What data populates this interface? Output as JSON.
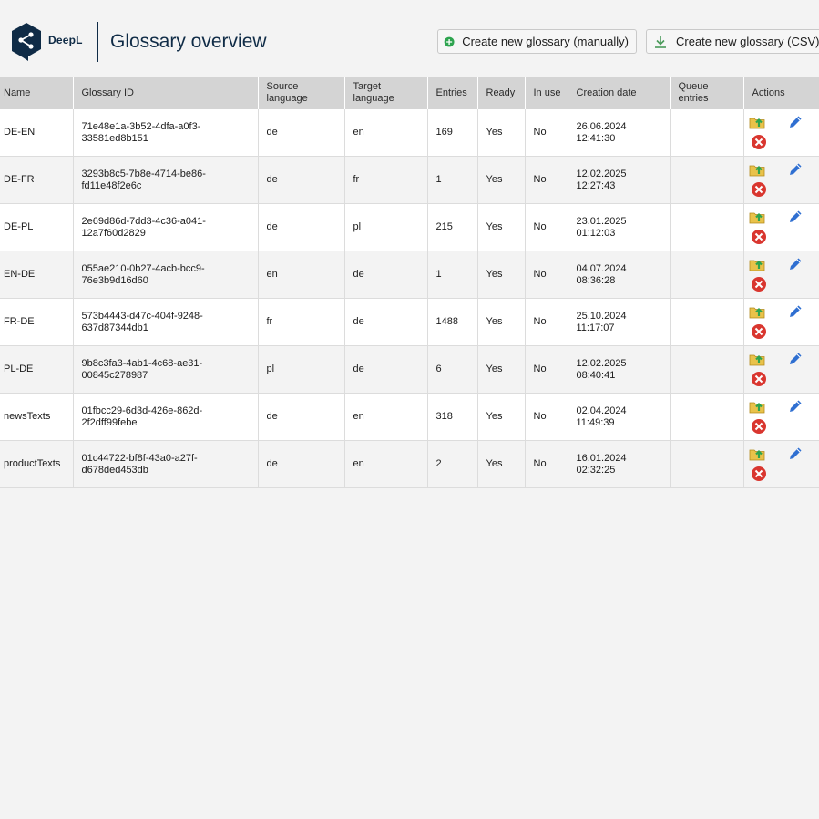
{
  "brand": {
    "logo_text": "DeepL"
  },
  "page": {
    "title": "Glossary overview"
  },
  "toolbar": {
    "create_manual_label": "Create new glossary (manually)",
    "create_csv_label": "Create new glossary (CSV)"
  },
  "table": {
    "headers": {
      "name": "Name",
      "glossary_id": "Glossary ID",
      "source_language": "Source language",
      "target_language": "Target language",
      "entries": "Entries",
      "ready": "Ready",
      "in_use": "In use",
      "creation_date": "Creation date",
      "queue_entries": "Queue entries",
      "actions": "Actions"
    },
    "rows": [
      {
        "name": "DE-EN",
        "glossary_id": "71e48e1a-3b52-4dfa-a0f3-33581ed8b151",
        "source": "de",
        "target": "en",
        "entries": "169",
        "ready": "Yes",
        "in_use": "No",
        "date": "26.06.2024",
        "time": "12:41:30",
        "queue": ""
      },
      {
        "name": "DE-FR",
        "glossary_id": "3293b8c5-7b8e-4714-be86-fd11e48f2e6c",
        "source": "de",
        "target": "fr",
        "entries": "1",
        "ready": "Yes",
        "in_use": "No",
        "date": "12.02.2025",
        "time": "12:27:43",
        "queue": ""
      },
      {
        "name": "DE-PL",
        "glossary_id": "2e69d86d-7dd3-4c36-a041-12a7f60d2829",
        "source": "de",
        "target": "pl",
        "entries": "215",
        "ready": "Yes",
        "in_use": "No",
        "date": "23.01.2025",
        "time": "01:12:03",
        "queue": ""
      },
      {
        "name": "EN-DE",
        "glossary_id": "055ae210-0b27-4acb-bcc9-76e3b9d16d60",
        "source": "en",
        "target": "de",
        "entries": "1",
        "ready": "Yes",
        "in_use": "No",
        "date": "04.07.2024",
        "time": "08:36:28",
        "queue": ""
      },
      {
        "name": "FR-DE",
        "glossary_id": "573b4443-d47c-404f-9248-637d87344db1",
        "source": "fr",
        "target": "de",
        "entries": "1488",
        "ready": "Yes",
        "in_use": "No",
        "date": "25.10.2024",
        "time": "11:17:07",
        "queue": ""
      },
      {
        "name": "PL-DE",
        "glossary_id": "9b8c3fa3-4ab1-4c68-ae31-00845c278987",
        "source": "pl",
        "target": "de",
        "entries": "6",
        "ready": "Yes",
        "in_use": "No",
        "date": "12.02.2025",
        "time": "08:40:41",
        "queue": ""
      },
      {
        "name": "newsTexts",
        "glossary_id": "01fbcc29-6d3d-426e-862d-2f2dff99febe",
        "source": "de",
        "target": "en",
        "entries": "318",
        "ready": "Yes",
        "in_use": "No",
        "date": "02.04.2024",
        "time": "11:49:39",
        "queue": ""
      },
      {
        "name": "productTexts",
        "glossary_id": "01c44722-bf8f-43a0-a27f-d678ded453db",
        "source": "de",
        "target": "en",
        "entries": "2",
        "ready": "Yes",
        "in_use": "No",
        "date": "16.01.2024",
        "time": "02:32:25",
        "queue": ""
      }
    ]
  },
  "icons": {
    "logo": "deepl-logo-icon",
    "create_manual": "plus-circle-icon",
    "create_csv": "download-icon",
    "export": "folder-export-icon",
    "edit": "pencil-icon",
    "delete": "delete-circle-icon"
  },
  "colors": {
    "brand_navy": "#0f2b46",
    "add_green": "#2ea44f",
    "download_green": "#4a9a5a",
    "edit_blue": "#2f6fd1",
    "delete_red": "#d9362f",
    "folder_yellow": "#e9c24a",
    "header_bg": "#d4d4d4"
  }
}
